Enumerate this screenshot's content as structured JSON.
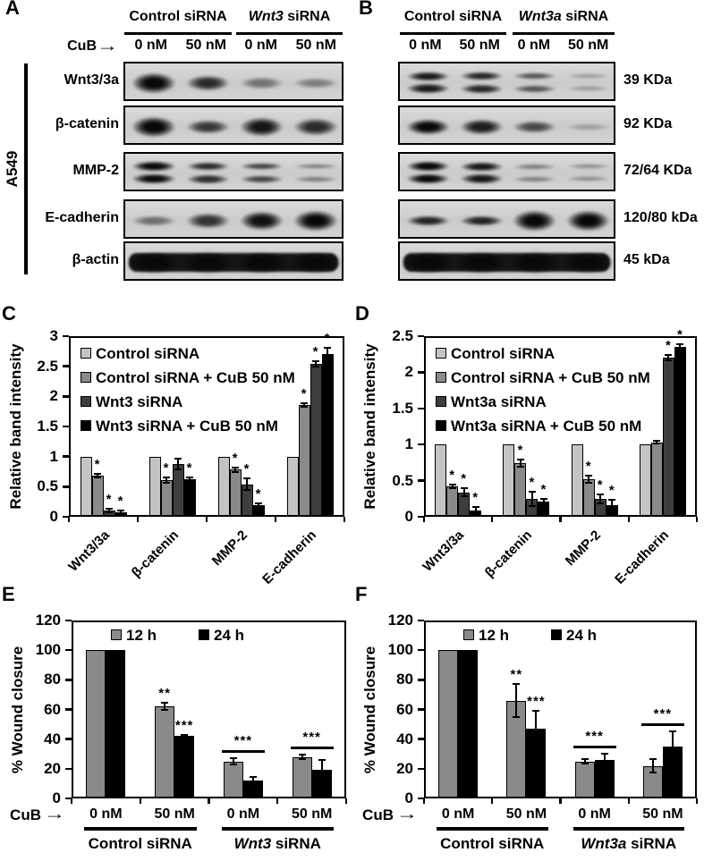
{
  "colors": {
    "series4": [
      "#c4c4c4",
      "#8a8a8a",
      "#3e3e3e",
      "#000000"
    ],
    "series2": [
      "#8a8a8a",
      "#000000"
    ],
    "axis": "#000000",
    "background": "#ffffff"
  },
  "blot_panels": [
    {
      "tag": "A",
      "cell_line": "A549",
      "cub_label": "CuB",
      "arrow": "→",
      "groups": [
        {
          "em": "",
          "text": "Control siRNA"
        },
        {
          "em": "Wnt3",
          "text": " siRNA"
        }
      ],
      "doses": [
        "0 nM",
        "50 nM",
        "0 nM",
        "50 nM"
      ],
      "rows": [
        {
          "label": "Wnt3/3a",
          "style": "single",
          "bands": [
            1.0,
            0.8,
            0.38,
            0.32
          ],
          "hscale": [
            1,
            0.9,
            0.85,
            0.8
          ]
        },
        {
          "label": "β-catenin",
          "style": "single",
          "bands": [
            1.0,
            0.72,
            0.92,
            0.8
          ],
          "hscale": [
            1,
            0.85,
            1,
            0.95
          ]
        },
        {
          "label": "MMP-2",
          "style": "double",
          "bands": [
            1.0,
            0.78,
            0.65,
            0.3
          ],
          "hscale": [
            1,
            1,
            0.9,
            0.8
          ]
        },
        {
          "label": "E-cadherin",
          "style": "single",
          "bands": [
            0.4,
            0.75,
            0.95,
            1.0
          ],
          "hscale": [
            0.7,
            0.85,
            1,
            1.05
          ]
        },
        {
          "label": "β-actin",
          "style": "actin",
          "bands": [
            1,
            1,
            1,
            1
          ],
          "hscale": [
            1,
            1,
            1,
            1
          ]
        }
      ]
    },
    {
      "tag": "B",
      "cell_line": "",
      "cub_label": "",
      "arrow": "",
      "groups": [
        {
          "em": "",
          "text": "Control siRNA"
        },
        {
          "em": "Wnt3a",
          "text": " siRNA"
        }
      ],
      "doses": [
        "0 nM",
        "50 nM",
        "0 nM",
        "50 nM"
      ],
      "rows": [
        {
          "label": "39 KDa",
          "style": "double",
          "bands": [
            0.9,
            0.82,
            0.55,
            0.15
          ],
          "hscale": [
            1,
            1,
            0.9,
            0.8
          ]
        },
        {
          "label": "92 KDa",
          "style": "single",
          "bands": [
            1.0,
            0.88,
            0.62,
            0.12
          ],
          "hscale": [
            0.8,
            0.8,
            0.75,
            0.7
          ]
        },
        {
          "label": "72/64 KDa",
          "style": "double",
          "bands": [
            1.0,
            0.92,
            0.3,
            0.22
          ],
          "hscale": [
            1,
            1,
            0.85,
            0.8
          ]
        },
        {
          "label": "120/80 kDa",
          "style": "single",
          "bands": [
            0.85,
            0.85,
            1.0,
            1.0
          ],
          "hscale": [
            0.6,
            0.6,
            1.05,
            1.05
          ]
        },
        {
          "label": "45 kDa",
          "style": "actin",
          "bands": [
            1,
            1,
            1,
            1
          ],
          "hscale": [
            1,
            1,
            1,
            1
          ]
        }
      ]
    }
  ],
  "chart_data": [
    {
      "id": "C",
      "panel_tag": "C",
      "type": "bar",
      "title": "",
      "xlabel": "",
      "ylabel": "Relative band intensity",
      "ylim": [
        0,
        3
      ],
      "ytick_step": 0.5,
      "grid": false,
      "legend_position": "top-left-vertical",
      "categories": [
        "Wnt3/3a",
        "β-catenin",
        "MMP-2",
        "E-cadherin"
      ],
      "series": [
        {
          "name": "Control siRNA",
          "color": "#c4c4c4",
          "values": [
            1,
            1,
            1,
            1
          ],
          "errors": [
            0,
            0,
            0,
            0
          ],
          "sig": [
            "",
            "",
            "",
            ""
          ]
        },
        {
          "name": "Control siRNA + CuB 50 nM",
          "color": "#8a8a8a",
          "values": [
            0.69,
            0.61,
            0.78,
            1.85
          ],
          "errors": [
            0.03,
            0.04,
            0.03,
            0.03
          ],
          "sig": [
            "*",
            "*",
            "*",
            "*"
          ]
        },
        {
          "name": "Wnt3 siRNA",
          "color": "#3e3e3e",
          "values": [
            0.11,
            0.87,
            0.54,
            2.54
          ],
          "errors": [
            0.03,
            0.09,
            0.1,
            0.04
          ],
          "sig": [
            "*",
            "",
            "*",
            "*"
          ]
        },
        {
          "name": "Wnt3 siRNA + CuB 50 nM",
          "color": "#000000",
          "values": [
            0.08,
            0.63,
            0.2,
            2.71
          ],
          "errors": [
            0.02,
            0.03,
            0.03,
            0.1
          ],
          "sig": [
            "*",
            "*",
            "*",
            "*"
          ]
        }
      ]
    },
    {
      "id": "D",
      "panel_tag": "D",
      "type": "bar",
      "title": "",
      "xlabel": "",
      "ylabel": "Relative band intensity",
      "ylim": [
        0,
        2.5
      ],
      "ytick_step": 0.5,
      "grid": false,
      "legend_position": "top-left-vertical",
      "categories": [
        "Wnt3/3a",
        "β-catenin",
        "MMP-2",
        "E-cadherin"
      ],
      "series": [
        {
          "name": "Control siRNA",
          "color": "#c4c4c4",
          "values": [
            1,
            1,
            1,
            1
          ],
          "errors": [
            0,
            0,
            0,
            0
          ],
          "sig": [
            "",
            "",
            "",
            ""
          ]
        },
        {
          "name": "Control siRNA + CuB 50 nM",
          "color": "#8a8a8a",
          "values": [
            0.42,
            0.74,
            0.52,
            1.03
          ],
          "errors": [
            0.02,
            0.05,
            0.05,
            0.02
          ],
          "sig": [
            "*",
            "*",
            "*",
            ""
          ]
        },
        {
          "name": "Wnt3a siRNA",
          "color": "#3e3e3e",
          "values": [
            0.34,
            0.25,
            0.25,
            2.2
          ],
          "errors": [
            0.05,
            0.1,
            0.06,
            0.04
          ],
          "sig": [
            "*",
            "*",
            "*",
            "*"
          ]
        },
        {
          "name": "Wnt3a siRNA + CuB 50 nM",
          "color": "#000000",
          "values": [
            0.09,
            0.21,
            0.16,
            2.35
          ],
          "errors": [
            0.04,
            0.04,
            0.07,
            0.04
          ],
          "sig": [
            "*",
            "*",
            "*",
            "*"
          ]
        }
      ]
    },
    {
      "id": "E",
      "panel_tag": "E",
      "type": "bar",
      "title": "",
      "xlabel": "",
      "ylabel": "% Wound closure",
      "ylim": [
        0,
        120
      ],
      "ytick_step": 20,
      "grid": false,
      "legend_position": "top-inside-horizontal",
      "categories": [
        "0 nM",
        "50 nM",
        "0 nM",
        "50 nM"
      ],
      "x_axis_prefix": "CuB",
      "arrow": "→",
      "group_labels": [
        {
          "em": "",
          "text": "Control siRNA",
          "span": [
            0,
            1
          ]
        },
        {
          "em": "Wnt3",
          "text": " siRNA",
          "span": [
            2,
            3
          ]
        }
      ],
      "series": [
        {
          "name": "12 h",
          "color": "#8a8a8a",
          "values": [
            100,
            62,
            25,
            28
          ],
          "errors": [
            0,
            2.5,
            2,
            1.5
          ],
          "sig": [
            "",
            "**",
            "",
            ""
          ]
        },
        {
          "name": "24 h",
          "color": "#000000",
          "values": [
            100,
            42,
            12,
            19
          ],
          "errors": [
            0,
            1,
            2.5,
            7
          ],
          "sig": [
            "",
            "***",
            "",
            ""
          ]
        }
      ],
      "brackets": [
        {
          "category": 2,
          "label": "***"
        },
        {
          "category": 3,
          "label": "***"
        }
      ]
    },
    {
      "id": "F",
      "panel_tag": "F",
      "type": "bar",
      "title": "",
      "xlabel": "",
      "ylabel": "% Wound closure",
      "ylim": [
        0,
        120
      ],
      "ytick_step": 20,
      "grid": false,
      "legend_position": "top-inside-horizontal",
      "categories": [
        "0 nM",
        "50 nM",
        "0 nM",
        "50 nM"
      ],
      "x_axis_prefix": "CuB",
      "arrow": "→",
      "group_labels": [
        {
          "em": "",
          "text": "Control siRNA",
          "span": [
            0,
            1
          ]
        },
        {
          "em": "Wnt3a",
          "text": " siRNA",
          "span": [
            2,
            3
          ]
        }
      ],
      "series": [
        {
          "name": "12 h",
          "color": "#8a8a8a",
          "values": [
            100,
            66,
            25,
            22
          ],
          "errors": [
            0,
            11,
            1.5,
            4.5
          ],
          "sig": [
            "",
            "**",
            "",
            ""
          ]
        },
        {
          "name": "24 h",
          "color": "#000000",
          "values": [
            100,
            47,
            26,
            35
          ],
          "errors": [
            0,
            12,
            4,
            10
          ],
          "sig": [
            "",
            "***",
            "",
            ""
          ]
        }
      ],
      "brackets": [
        {
          "category": 2,
          "label": "***"
        },
        {
          "category": 3,
          "label": "***"
        }
      ]
    }
  ]
}
